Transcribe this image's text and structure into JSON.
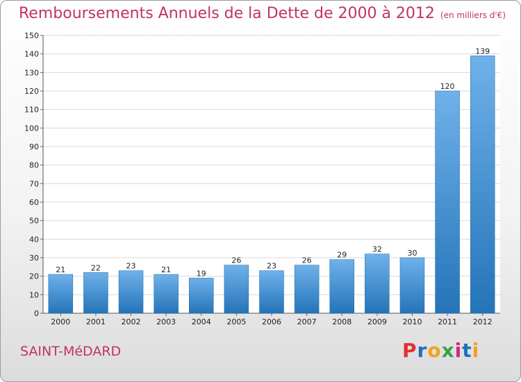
{
  "chart_data": {
    "type": "bar",
    "title": "Remboursements Annuels de la Dette de 2000 à 2012",
    "unit_note": "(en milliers d'€)",
    "categories": [
      "2000",
      "2001",
      "2002",
      "2003",
      "2004",
      "2005",
      "2006",
      "2007",
      "2008",
      "2009",
      "2010",
      "2011",
      "2012"
    ],
    "values": [
      21,
      22,
      23,
      21,
      19,
      26,
      23,
      26,
      29,
      32,
      30,
      120,
      139
    ],
    "ylim": [
      0,
      150
    ],
    "yticks": [
      0,
      10,
      20,
      30,
      40,
      50,
      60,
      70,
      80,
      90,
      100,
      110,
      120,
      130,
      140,
      150
    ],
    "xlabel": "",
    "ylabel": "",
    "grid": true
  },
  "footer": {
    "town": "SAINT-MéDARD",
    "brand": "Proxiti"
  },
  "colors": {
    "title": "#c0326a",
    "bar_light": "#6fb1ea",
    "bar_dark": "#2474b8",
    "grid": "#d8d8d8",
    "brand": [
      "#e0312f",
      "#1c6fbd",
      "#f4a11b",
      "#3aa048",
      "#d02a7c",
      "#1c6fbd",
      "#f4a11b"
    ]
  }
}
